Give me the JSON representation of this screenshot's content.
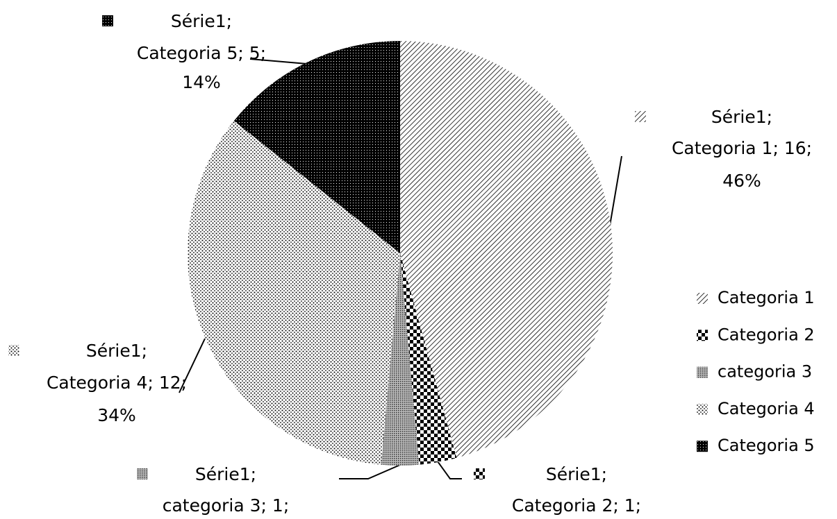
{
  "chart_data": {
    "type": "pie",
    "categories": [
      "Categoria 1",
      "Categoria 2",
      "categoria 3",
      "Categoria 4",
      "Categoria 5"
    ],
    "values": [
      16,
      1,
      1,
      12,
      5
    ],
    "value_labels": [
      [
        "Série1;",
        "Categoria 1; 16;",
        "46%"
      ],
      [
        "Série1;",
        "Categoria 2; 1;"
      ],
      [
        "Série1;",
        "categoria 3; 1;"
      ],
      [
        "Série1;",
        "Categoria 4; 12;",
        "34%"
      ],
      [
        "Série1;",
        "Categoria 5; 5;",
        "14%"
      ]
    ],
    "legend": "right"
  }
}
